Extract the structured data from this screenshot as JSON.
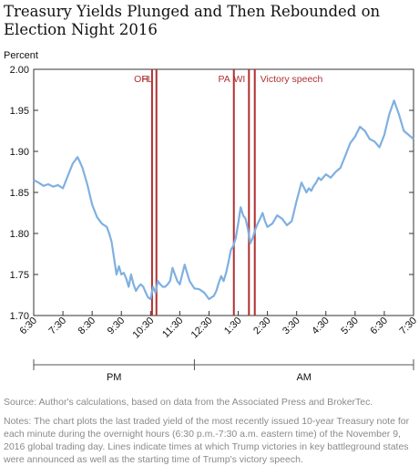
{
  "title_lines": [
    "Treasury Yields Plunged and Then Rebounded on",
    "Election Night 2016"
  ],
  "source": "Source:  Author's calculations, based on data from the Associated Press and BrokerTec.",
  "notes": "Notes: The chart plots the last traded yield of the most recently issued 10-year Treasury note for each minute during the overnight hours (6:30 p.m.-7:30 a.m. eastern time) of the November 9, 2016 global trading day. Lines indicate times at which Trump victories in key battleground states were announced as well as the starting time of Trump's victory speech.",
  "chart_data": {
    "type": "line",
    "ylabel": "Percent",
    "ylim": [
      1.7,
      2.0
    ],
    "yticks": [
      "1.70",
      "1.75",
      "1.80",
      "1.85",
      "1.90",
      "1.95",
      "2.00"
    ],
    "xlim": [
      0,
      780
    ],
    "xtick_labels": [
      "6:30",
      "7:30",
      "8:30",
      "9:30",
      "10:30",
      "11:30",
      "12:30",
      "1:30",
      "2:30",
      "3:30",
      "4:30",
      "5:30",
      "6:30",
      "7:30"
    ],
    "period_labels": [
      "PM",
      "AM"
    ],
    "line_color": "#7fb0e0",
    "event_color": "#b03030",
    "grid": false,
    "events": [
      {
        "label": "OH",
        "x": 243
      },
      {
        "label": "FL",
        "x": 252
      },
      {
        "label": "PA",
        "x": 411
      },
      {
        "label": "WI",
        "x": 442
      },
      {
        "label": "Victory speech",
        "x": 454
      }
    ],
    "series": [
      {
        "x": [
          0,
          10,
          20,
          30,
          40,
          50,
          60,
          70,
          80,
          90,
          95,
          100,
          110,
          120,
          130,
          140,
          150,
          155,
          160,
          165,
          170,
          175,
          180,
          185,
          190,
          195,
          200,
          205,
          210,
          215,
          220,
          225,
          230,
          235,
          240,
          245,
          250,
          255,
          260,
          265,
          270,
          275,
          280,
          285,
          290,
          295,
          300,
          310,
          320,
          330,
          340,
          350,
          360,
          365,
          370,
          375,
          380,
          385,
          390,
          395,
          400,
          405,
          410,
          415,
          420,
          425,
          430,
          435,
          440,
          445,
          450,
          455,
          460,
          465,
          470,
          475,
          480,
          490,
          500,
          510,
          520,
          530,
          540,
          550,
          560,
          565,
          570,
          575,
          580,
          585,
          590,
          600,
          610,
          620,
          630,
          640,
          650,
          660,
          670,
          680,
          690,
          700,
          710,
          720,
          730,
          740,
          750,
          760,
          770,
          780
        ],
        "y": [
          1.865,
          1.862,
          1.858,
          1.86,
          1.857,
          1.859,
          1.855,
          1.87,
          1.885,
          1.893,
          1.887,
          1.88,
          1.86,
          1.835,
          1.82,
          1.812,
          1.808,
          1.8,
          1.79,
          1.77,
          1.75,
          1.76,
          1.75,
          1.752,
          1.745,
          1.735,
          1.75,
          1.738,
          1.73,
          1.735,
          1.738,
          1.735,
          1.728,
          1.722,
          1.72,
          1.735,
          1.728,
          1.742,
          1.738,
          1.735,
          1.735,
          1.738,
          1.742,
          1.758,
          1.75,
          1.742,
          1.738,
          1.762,
          1.742,
          1.733,
          1.732,
          1.728,
          1.72,
          1.722,
          1.724,
          1.73,
          1.74,
          1.748,
          1.742,
          1.752,
          1.765,
          1.78,
          1.785,
          1.795,
          1.812,
          1.832,
          1.822,
          1.818,
          1.805,
          1.788,
          1.795,
          1.805,
          1.812,
          1.818,
          1.825,
          1.815,
          1.808,
          1.812,
          1.822,
          1.818,
          1.81,
          1.815,
          1.84,
          1.862,
          1.85,
          1.855,
          1.852,
          1.858,
          1.862,
          1.868,
          1.865,
          1.872,
          1.868,
          1.875,
          1.88,
          1.895,
          1.91,
          1.918,
          1.93,
          1.925,
          1.915,
          1.912,
          1.905,
          1.92,
          1.945,
          1.962,
          1.945,
          1.925,
          1.92,
          1.915
        ]
      }
    ]
  }
}
